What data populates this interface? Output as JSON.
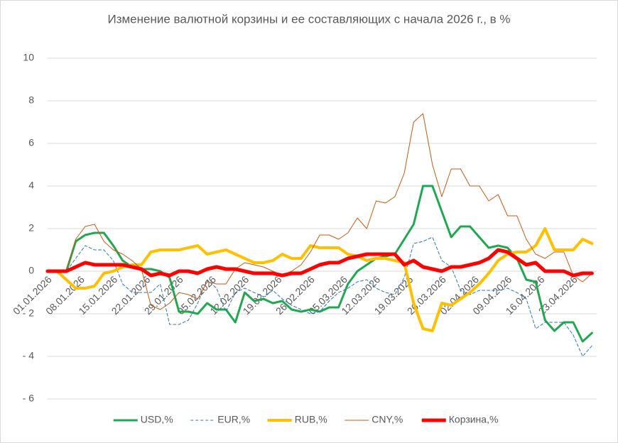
{
  "chart_data": {
    "type": "line",
    "title": "Изменение валютной корзины и ее составляющих с начала 2026 г., в %",
    "x": [
      "01.01.2026",
      "03.01.2026",
      "05.01.2026",
      "07.01.2026",
      "09.01.2026",
      "11.01.2026",
      "13.01.2026",
      "15.01.2026",
      "17.01.2026",
      "19.01.2026",
      "21.01.2026",
      "23.01.2026",
      "25.01.2026",
      "27.01.2026",
      "29.01.2026",
      "31.01.2026",
      "02.02.2026",
      "04.02.2026",
      "06.02.2026",
      "08.02.2026",
      "10.02.2026",
      "12.02.2026",
      "14.02.2026",
      "16.02.2026",
      "18.02.2026",
      "20.02.2026",
      "22.02.2026",
      "24.02.2026",
      "26.02.2026",
      "28.02.2026",
      "02.03.2026",
      "04.03.2026",
      "06.03.2026",
      "08.03.2026",
      "10.03.2026",
      "12.03.2026",
      "14.03.2026",
      "16.03.2026",
      "18.03.2026",
      "20.03.2026",
      "22.03.2026",
      "24.03.2026",
      "26.03.2026",
      "28.03.2026",
      "30.03.2026",
      "01.04.2026",
      "03.04.2026",
      "05.04.2026",
      "07.04.2026",
      "09.04.2026",
      "11.04.2026",
      "13.04.2026",
      "15.04.2026",
      "17.04.2026",
      "19.04.2026",
      "21.04.2026",
      "23.04.2026",
      "25.04.2026",
      "27.04.2026"
    ],
    "xlim": [
      "01.01.2026",
      "28.04.2026"
    ],
    "xticks": [
      "01.01.2026",
      "08.01.2026",
      "15.01.2026",
      "22.01.2026",
      "29.01.2026",
      "05.02.2026",
      "12.02.2026",
      "19.02.2026",
      "26.02.2026",
      "05.03.2026",
      "12.03.2026",
      "19.03.2026",
      "26.03.2026",
      "02.04.2026",
      "09.04.2026",
      "16.04.2026",
      "23.04.2026"
    ],
    "ylim": [
      -6,
      10
    ],
    "yticks": [
      {
        "value": -6,
        "label": "- 6"
      },
      {
        "value": -4,
        "label": "- 4"
      },
      {
        "value": -2,
        "label": "- 2"
      },
      0,
      2,
      4,
      6,
      8,
      10
    ],
    "grid": true,
    "legend": "bottom",
    "series": [
      {
        "name": "USD,%",
        "color": "#1fa84f",
        "line_width": 3,
        "dashed": false,
        "values": [
          0,
          0,
          0,
          1.4,
          1.7,
          1.8,
          1.8,
          1.2,
          0.5,
          0.2,
          0.1,
          0.1,
          0,
          -0.3,
          -1.9,
          -1.9,
          -2.0,
          -1.5,
          -1.8,
          -1.8,
          -2.4,
          -1.0,
          -1.4,
          -1.3,
          -1.5,
          -1.4,
          -1.8,
          -1.9,
          -1.8,
          -1.9,
          -1.7,
          -1.7,
          -0.6,
          0,
          0.3,
          0.6,
          0.7,
          0.8,
          1.5,
          2.2,
          4.0,
          4.0,
          2.8,
          1.6,
          2.1,
          2.1,
          1.6,
          1.1,
          1.2,
          1.1,
          0.6,
          -0.4,
          -0.5,
          -2.3,
          -2.8,
          -2.4,
          -2.4,
          -3.3,
          -2.9
        ]
      },
      {
        "name": "EUR,%",
        "color": "#2e75b6",
        "line_width": 1,
        "dashed": true,
        "values": [
          0,
          0,
          0,
          0.6,
          1.2,
          1.0,
          1.0,
          0.5,
          -0.6,
          -1.0,
          -1.0,
          -1.0,
          -0.6,
          -2.5,
          -2.5,
          -2.3,
          -1.5,
          -0.4,
          -0.8,
          -1.9,
          -1.0,
          -0.8,
          -1.0,
          -1.2,
          -0.9,
          -1.3,
          -1.6,
          -1.8,
          -2.0,
          -1.9,
          -1.4,
          -1.0,
          -0.8,
          -0.5,
          -0.4,
          -0.8,
          -1.0,
          -1.1,
          -0.3,
          1.3,
          1.4,
          1.6,
          0.5,
          0.2,
          -0.9,
          -1.1,
          -0.9,
          -0.9,
          -0.9,
          -0.8,
          -1.0,
          -1.3,
          -2.7,
          -2.4,
          -2.4,
          -2.4,
          -3.0,
          -4.0,
          -3.5
        ]
      },
      {
        "name": "RUB,%",
        "color": "#ffc000",
        "line_width": 4,
        "dashed": false,
        "values": [
          0,
          0,
          -0.4,
          -0.8,
          -0.8,
          -0.7,
          -0.1,
          0,
          0.2,
          0.3,
          0.3,
          0.9,
          1.0,
          1.0,
          1.0,
          1.1,
          1.2,
          0.8,
          0.9,
          1.0,
          0.8,
          0.6,
          0.4,
          0.4,
          0.5,
          0.8,
          0.6,
          0.6,
          1.2,
          1.1,
          1.1,
          1.1,
          0.8,
          0.7,
          0.5,
          0.6,
          0.6,
          0.5,
          0.4,
          -1.5,
          -2.7,
          -2.8,
          -1.5,
          -1.6,
          -1.3,
          -1.0,
          -0.6,
          -0.1,
          0.5,
          0.8,
          0.9,
          0.9,
          1.2,
          2.0,
          1.0,
          1.0,
          1.0,
          1.5,
          1.3
        ]
      },
      {
        "name": "CNY,%",
        "color": "#c55a11",
        "line_width": 1,
        "dashed": false,
        "values": [
          0,
          0,
          0,
          1.5,
          2.1,
          2.2,
          1.4,
          1.0,
          0.8,
          0.5,
          0.1,
          -1.6,
          -1.8,
          -1.5,
          -1.0,
          -1.1,
          -1.3,
          -0.5,
          -0.6,
          -0.6,
          0.1,
          0.4,
          0.3,
          0.2,
          0.0,
          -0.2,
          0.0,
          0.3,
          0.9,
          1.7,
          1.7,
          1.5,
          1.8,
          2.5,
          2.0,
          3.3,
          3.2,
          3.5,
          4.6,
          7.0,
          7.4,
          5.0,
          3.5,
          4.8,
          4.8,
          4.0,
          4.0,
          3.3,
          3.6,
          2.6,
          2.6,
          1.5,
          0.8,
          0.6,
          0.9,
          0.9,
          -0.2,
          -0.5,
          -0.1
        ]
      },
      {
        "name": "Корзина,%",
        "color": "#ff0000",
        "line_width": 5,
        "dashed": false,
        "values": [
          0,
          0,
          0,
          0.2,
          0.4,
          0.3,
          0.3,
          0.3,
          0.3,
          0.2,
          0.1,
          -0.2,
          -0.1,
          -0.2,
          0,
          0,
          -0.1,
          0.1,
          0.2,
          0.1,
          0.1,
          0,
          -0.1,
          -0.1,
          -0.1,
          -0.2,
          -0.1,
          -0.1,
          0.1,
          0.3,
          0.4,
          0.4,
          0.6,
          0.7,
          0.8,
          0.8,
          0.8,
          0.8,
          0.3,
          0.5,
          0.2,
          0.1,
          0.0,
          0.2,
          0.2,
          0.3,
          0.4,
          0.6,
          1.0,
          0.9,
          0.6,
          0.3,
          0.4,
          0.0,
          0.0,
          0.0,
          -0.2,
          -0.1,
          -0.1
        ]
      }
    ]
  }
}
